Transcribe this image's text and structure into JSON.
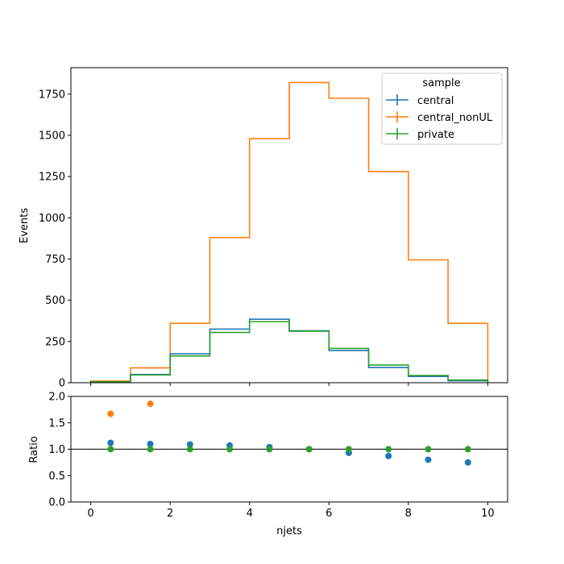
{
  "chart_data": [
    {
      "type": "line",
      "drawstyle": "step",
      "ylabel": "Events",
      "xlim": [
        -0.5,
        10.5
      ],
      "ylim": [
        0,
        1910
      ],
      "yticks": [
        0,
        250,
        500,
        750,
        1000,
        1250,
        1500,
        1750
      ],
      "xticks": [
        0,
        2,
        4,
        6,
        8,
        10
      ],
      "bin_edges": [
        0,
        1,
        2,
        3,
        4,
        5,
        6,
        7,
        8,
        9,
        10
      ],
      "legend_title": "sample",
      "legend_position": "top-right",
      "series": [
        {
          "name": "central",
          "color": "#1f77b4",
          "values": [
            6,
            50,
            175,
            325,
            385,
            315,
            195,
            92,
            38,
            12
          ]
        },
        {
          "name": "central_nonUL",
          "color": "#ff7f0e",
          "values": [
            10,
            90,
            360,
            880,
            1480,
            1820,
            1725,
            1280,
            745,
            360
          ]
        },
        {
          "name": "private",
          "color": "#2ca02c",
          "values": [
            5,
            47,
            162,
            305,
            370,
            312,
            208,
            107,
            44,
            16
          ]
        }
      ]
    },
    {
      "type": "scatter",
      "ylabel": "Ratio",
      "xlabel": "njets",
      "xlim": [
        -0.5,
        10.5
      ],
      "ylim": [
        0,
        2
      ],
      "yticks": [
        "0.0",
        "0.5",
        "1.0",
        "1.5",
        "2.0"
      ],
      "xticks": [
        0,
        2,
        4,
        6,
        8,
        10
      ],
      "reference_line": 1.0,
      "series": [
        {
          "name": "central",
          "color": "#1f77b4",
          "x": [
            0.5,
            1.5,
            2.5,
            3.5,
            4.5,
            5.5,
            6.5,
            7.5,
            8.5,
            9.5
          ],
          "values": [
            1.12,
            1.1,
            1.09,
            1.07,
            1.04,
            1.0,
            0.93,
            0.87,
            0.8,
            0.75
          ]
        },
        {
          "name": "central_nonUL",
          "color": "#ff7f0e",
          "x": [
            0.5,
            1.5
          ],
          "values": [
            1.67,
            1.86
          ]
        },
        {
          "name": "private",
          "color": "#2ca02c",
          "x": [
            0.5,
            1.5,
            2.5,
            3.5,
            4.5,
            5.5,
            6.5,
            7.5,
            8.5,
            9.5
          ],
          "values": [
            1.0,
            1.0,
            1.0,
            1.0,
            1.0,
            1.0,
            1.0,
            1.0,
            1.0,
            1.0
          ]
        }
      ]
    }
  ]
}
